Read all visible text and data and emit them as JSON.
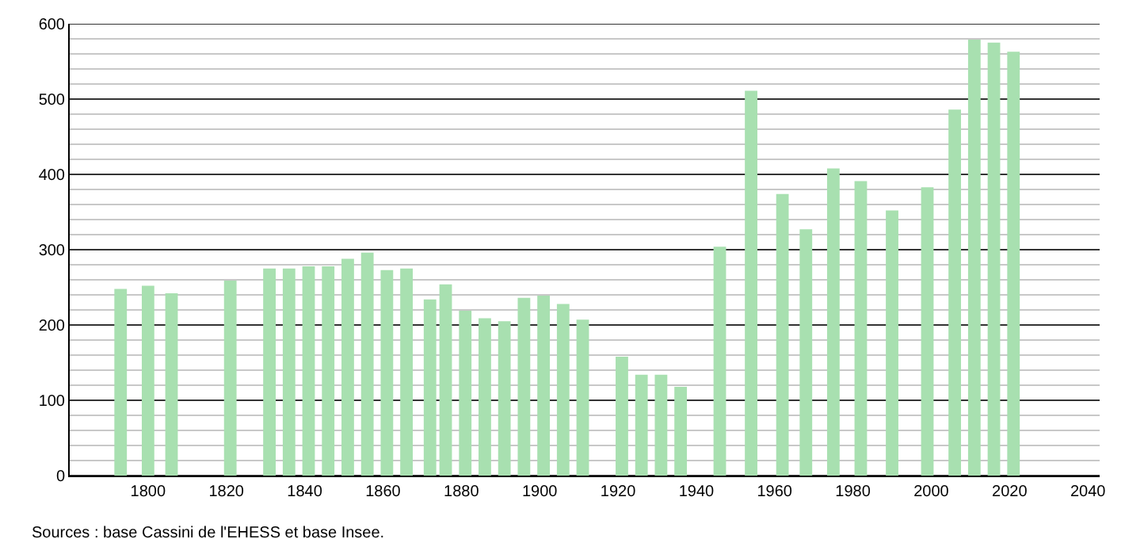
{
  "chart_data": {
    "type": "bar",
    "x": [
      1793,
      1800,
      1806,
      1821,
      1831,
      1836,
      1841,
      1846,
      1851,
      1856,
      1861,
      1866,
      1872,
      1876,
      1881,
      1886,
      1891,
      1896,
      1901,
      1906,
      1911,
      1921,
      1926,
      1931,
      1936,
      1946,
      1954,
      1962,
      1968,
      1975,
      1982,
      1990,
      1999,
      2006,
      2011,
      2016,
      2021
    ],
    "values": [
      248,
      252,
      242,
      259,
      275,
      275,
      278,
      278,
      288,
      296,
      273,
      275,
      234,
      254,
      219,
      209,
      205,
      236,
      239,
      228,
      207,
      158,
      134,
      134,
      118,
      304,
      511,
      374,
      327,
      408,
      391,
      352,
      383,
      486,
      579,
      575,
      563
    ],
    "color": "#a8e0b0",
    "xlim": [
      1780,
      2043
    ],
    "xticks": [
      1800,
      1820,
      1840,
      1860,
      1880,
      1900,
      1920,
      1940,
      1960,
      1980,
      2000,
      2020,
      2040
    ],
    "ylim": [
      0,
      600
    ],
    "yticks": [
      0,
      {
        "value": 20,
        "label": null
      },
      {
        "value": 40,
        "label": null
      },
      {
        "value": 60,
        "label": null
      },
      {
        "value": 80,
        "label": null
      },
      100,
      {
        "value": 120,
        "label": null
      },
      {
        "value": 140,
        "label": null
      },
      {
        "value": 160,
        "label": null
      },
      {
        "value": 180,
        "label": null
      },
      200,
      {
        "value": 220,
        "label": null
      },
      {
        "value": 240,
        "label": null
      },
      {
        "value": 260,
        "label": null
      },
      {
        "value": 280,
        "label": null
      },
      300,
      {
        "value": 320,
        "label": null
      },
      {
        "value": 340,
        "label": null
      },
      {
        "value": 360,
        "label": null
      },
      {
        "value": 380,
        "label": null
      },
      400,
      {
        "value": 420,
        "label": null
      },
      {
        "value": 440,
        "label": null
      },
      {
        "value": 460,
        "label": null
      },
      {
        "value": 480,
        "label": null
      },
      500,
      {
        "value": 520,
        "label": null
      },
      {
        "value": 540,
        "label": null
      },
      {
        "value": 560,
        "label": null
      },
      {
        "value": 580,
        "label": null
      },
      600
    ],
    "grid": "y",
    "annotations": [
      "Sources : base Cassini de l'EHESS et base Insee."
    ]
  }
}
